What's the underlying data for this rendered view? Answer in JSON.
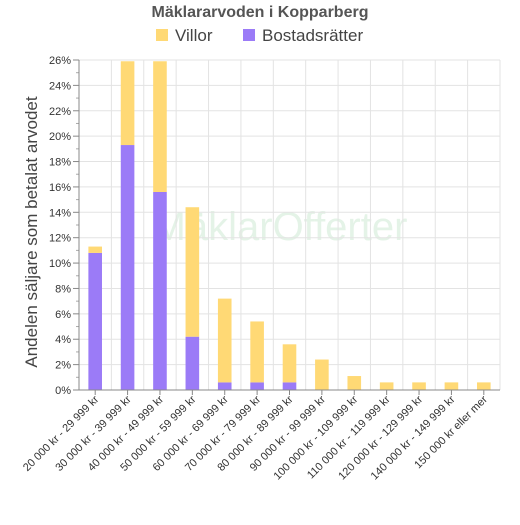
{
  "chart_data": {
    "type": "bar",
    "stacked": true,
    "title": "Mäklararvoden i Kopparberg",
    "ylabel": "Andelen säljare som betalat arvodet",
    "xlabel": "",
    "ylim": [
      0,
      26
    ],
    "y_ticks": [
      0,
      2,
      4,
      6,
      8,
      10,
      12,
      14,
      16,
      18,
      20,
      22,
      24,
      26
    ],
    "y_tick_suffix": "%",
    "grid": true,
    "legend_position": "top",
    "categories": [
      "20 000 kr - 29 999 kr",
      "30 000 kr - 39 999 kr",
      "40 000 kr - 49 999 kr",
      "50 000 kr - 59 999 kr",
      "60 000 kr - 69 999 kr",
      "70 000 kr - 79 999 kr",
      "80 000 kr - 89 999 kr",
      "90 000 kr - 99 999 kr",
      "100 000 kr - 109 999 kr",
      "110 000 kr - 119 999 kr",
      "120 000 kr - 129 999 kr",
      "140 000 kr - 149 999 kr",
      "150 000 kr eller mer"
    ],
    "series": [
      {
        "name": "Bostadsrätter",
        "color": "#9b7bf7",
        "values": [
          10.8,
          19.3,
          15.6,
          4.2,
          0.6,
          0.6,
          0.6,
          0,
          0,
          0,
          0,
          0,
          0
        ]
      },
      {
        "name": "Villor",
        "color": "#ffd975",
        "values": [
          0.5,
          6.6,
          10.3,
          10.2,
          6.6,
          4.8,
          3.0,
          2.4,
          1.1,
          0.6,
          0.6,
          0.6,
          0.6
        ]
      }
    ],
    "legend_order": [
      "Villor",
      "Bostadsrätter"
    ]
  },
  "watermark": {
    "text": "MäklarOfferter"
  }
}
